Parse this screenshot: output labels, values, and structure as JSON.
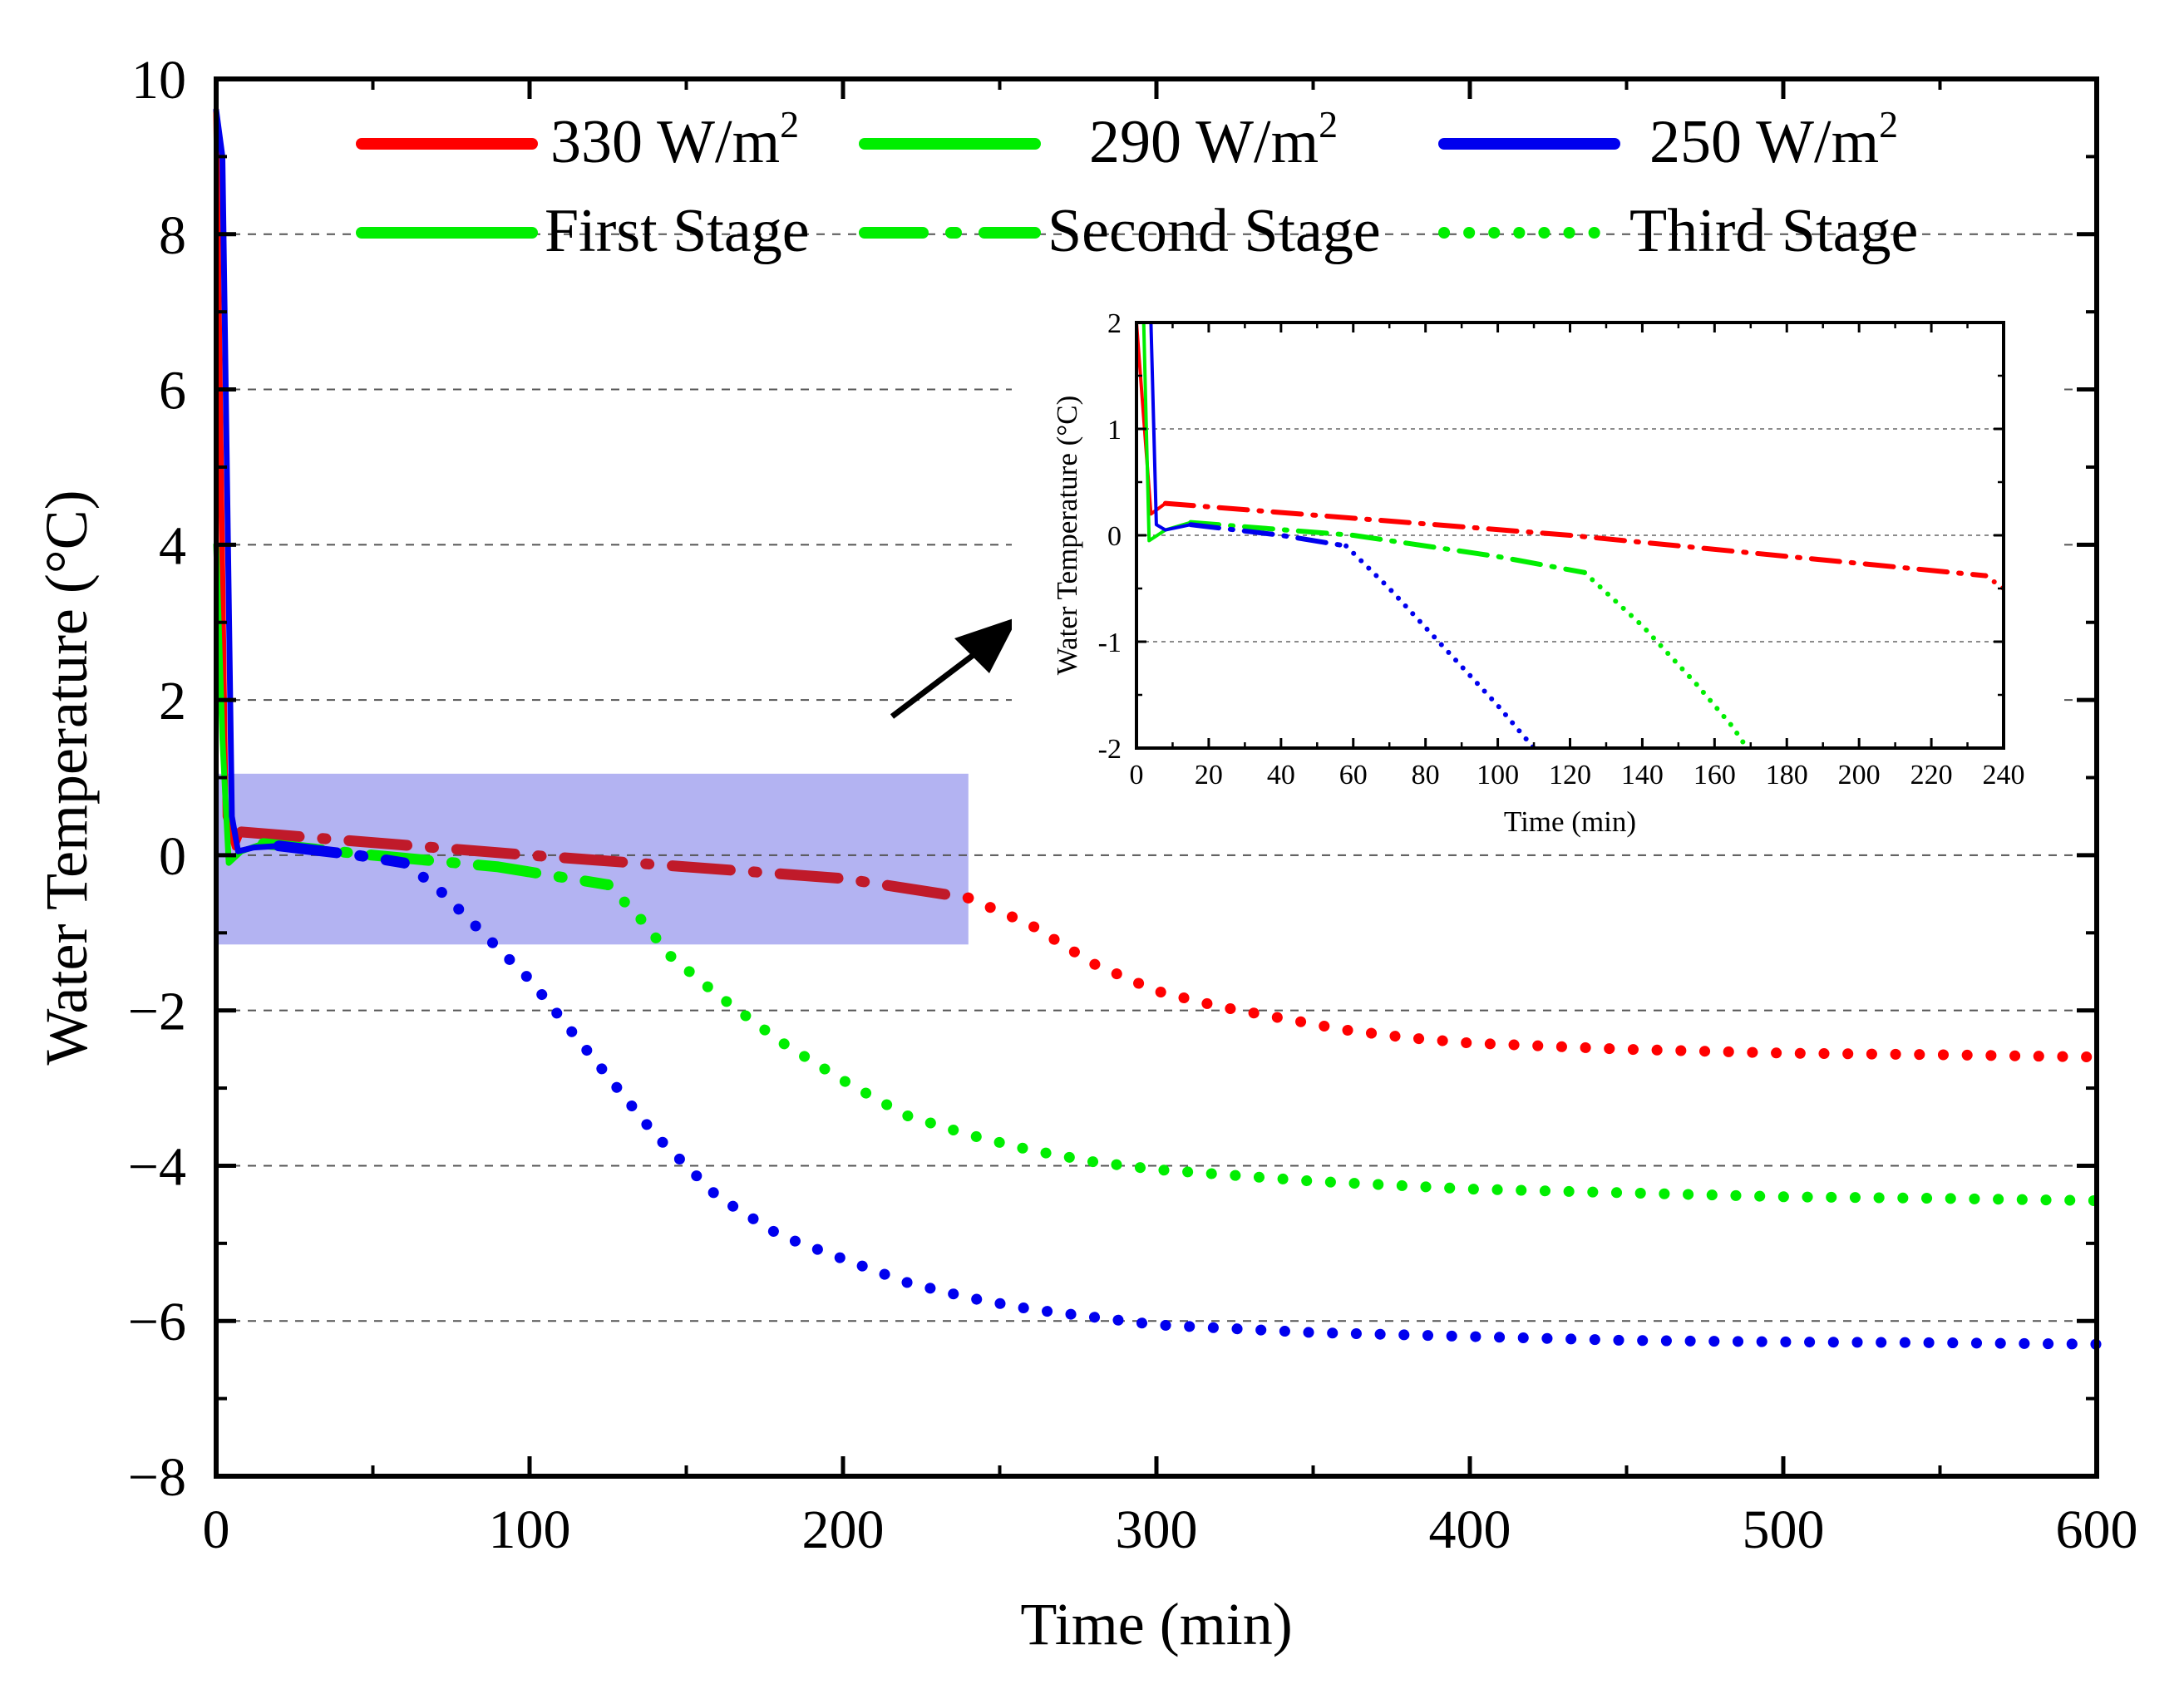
{
  "colors": {
    "q330": "#ff0000",
    "q290": "#00ee00",
    "q250": "#0000ee",
    "q330_in_zoom": "#c01a2a",
    "zoom_region": "#9999ee",
    "arrow": "#000000"
  },
  "chart_data": [
    {
      "id": "main",
      "type": "line",
      "xlabel": "Time (min)",
      "ylabel": "Water Temperature (°C)",
      "xlim": [
        0,
        600
      ],
      "ylim": [
        -8,
        10
      ],
      "xticks": [
        0,
        100,
        200,
        300,
        400,
        500,
        600
      ],
      "yticks": [
        10,
        8,
        6,
        4,
        2,
        0,
        -2,
        -4,
        -6,
        -8
      ],
      "ytick_labels": [
        "10",
        "8",
        "6",
        "4",
        "2",
        "0",
        "−2",
        "−4",
        "−6",
        "−8"
      ],
      "grid": "horizontal-dashed",
      "zoom_region": {
        "x": [
          0,
          240
        ],
        "y": [
          -1.15,
          1.05
        ]
      },
      "legend": {
        "placement": "top",
        "rows": [
          [
            {
              "label": "330 W/m",
              "sup": "2",
              "series": "q330",
              "style": "solid"
            },
            {
              "label": "290 W/m",
              "sup": "2",
              "series": "q290",
              "style": "solid"
            },
            {
              "label": "250 W/m",
              "sup": "2",
              "series": "q250",
              "style": "solid"
            }
          ],
          [
            {
              "label": "First Stage",
              "series": "q290",
              "style": "solid"
            },
            {
              "label": "Second Stage",
              "series": "q290",
              "style": "dashdot"
            },
            {
              "label": "Third Stage",
              "series": "q290",
              "style": "dotted"
            }
          ]
        ]
      },
      "series": [
        {
          "name": "330 W/m2",
          "color_key": "q330",
          "stages": [
            {
              "stage": "first",
              "points": [
                [
                  0,
                  9.6
                ],
                [
                  3,
                  0.5
                ],
                [
                  6,
                  0.1
                ],
                [
                  8,
                  0.3
                ]
              ]
            },
            {
              "stage": "second",
              "points": [
                [
                  8,
                  0.3
                ],
                [
                  100,
                  0.0
                ],
                [
                  200,
                  -0.3
                ],
                [
                  240,
                  -0.55
                ]
              ]
            },
            {
              "stage": "third",
              "points": [
                [
                  240,
                  -0.55
                ],
                [
                  260,
                  -0.9
                ],
                [
                  280,
                  -1.4
                ],
                [
                  300,
                  -1.75
                ],
                [
                  320,
                  -1.95
                ],
                [
                  340,
                  -2.1
                ],
                [
                  360,
                  -2.25
                ],
                [
                  380,
                  -2.35
                ],
                [
                  400,
                  -2.42
                ],
                [
                  450,
                  -2.5
                ],
                [
                  500,
                  -2.55
                ],
                [
                  550,
                  -2.57
                ],
                [
                  600,
                  -2.6
                ]
              ]
            }
          ]
        },
        {
          "name": "290 W/m2",
          "color_key": "q290",
          "stages": [
            {
              "stage": "first",
              "points": [
                [
                  0,
                  4.0
                ],
                [
                  2,
                  1.5
                ],
                [
                  4,
                  -0.1
                ],
                [
                  8,
                  0.05
                ],
                [
                  15,
                  0.15
                ]
              ]
            },
            {
              "stage": "second",
              "points": [
                [
                  15,
                  0.15
                ],
                [
                  50,
                  0.0
                ],
                [
                  90,
                  -0.15
                ],
                [
                  125,
                  -0.38
                ]
              ]
            },
            {
              "stage": "third",
              "points": [
                [
                  125,
                  -0.38
                ],
                [
                  135,
                  -0.8
                ],
                [
                  145,
                  -1.3
                ],
                [
                  160,
                  -1.8
                ],
                [
                  180,
                  -2.4
                ],
                [
                  200,
                  -2.9
                ],
                [
                  220,
                  -3.35
                ],
                [
                  240,
                  -3.6
                ],
                [
                  260,
                  -3.8
                ],
                [
                  280,
                  -3.95
                ],
                [
                  300,
                  -4.05
                ],
                [
                  350,
                  -4.2
                ],
                [
                  400,
                  -4.3
                ],
                [
                  450,
                  -4.35
                ],
                [
                  500,
                  -4.4
                ],
                [
                  550,
                  -4.42
                ],
                [
                  600,
                  -4.45
                ]
              ]
            }
          ]
        },
        {
          "name": "250 W/m2",
          "color_key": "q250",
          "stages": [
            {
              "stage": "first",
              "points": [
                [
                  0,
                  9.6
                ],
                [
                  2,
                  9.0
                ],
                [
                  5,
                  0.5
                ],
                [
                  7,
                  0.05
                ],
                [
                  12,
                  0.1
                ],
                [
                  20,
                  0.12
                ]
              ]
            },
            {
              "stage": "second",
              "points": [
                [
                  20,
                  0.12
                ],
                [
                  45,
                  0.0
                ],
                [
                  60,
                  -0.1
                ]
              ]
            },
            {
              "stage": "third",
              "points": [
                [
                  60,
                  -0.1
                ],
                [
                  70,
                  -0.4
                ],
                [
                  80,
                  -0.8
                ],
                [
                  100,
                  -1.6
                ],
                [
                  120,
                  -2.6
                ],
                [
                  140,
                  -3.6
                ],
                [
                  160,
                  -4.4
                ],
                [
                  180,
                  -4.9
                ],
                [
                  200,
                  -5.2
                ],
                [
                  220,
                  -5.5
                ],
                [
                  240,
                  -5.7
                ],
                [
                  260,
                  -5.85
                ],
                [
                  280,
                  -5.95
                ],
                [
                  300,
                  -6.05
                ],
                [
                  350,
                  -6.15
                ],
                [
                  400,
                  -6.2
                ],
                [
                  450,
                  -6.25
                ],
                [
                  500,
                  -6.27
                ],
                [
                  550,
                  -6.28
                ],
                [
                  600,
                  -6.3
                ]
              ]
            }
          ]
        }
      ]
    },
    {
      "id": "inset",
      "type": "line",
      "xlabel": "Time (min)",
      "ylabel": "Water Temperature (°C)",
      "xlim": [
        0,
        240
      ],
      "ylim": [
        -2,
        2
      ],
      "xticks": [
        0,
        20,
        40,
        60,
        80,
        100,
        120,
        140,
        160,
        180,
        200,
        220,
        240
      ],
      "yticks": [
        2,
        1,
        0,
        -1,
        -2
      ],
      "ytick_labels": [
        "2",
        "1",
        "0",
        "-1",
        "-2"
      ],
      "grid": "horizontal-dashed",
      "series": [
        {
          "name": "330 W/m2",
          "color_key": "q330",
          "stages": [
            {
              "stage": "first",
              "points": [
                [
                  0,
                  2.0
                ],
                [
                  4,
                  0.2
                ],
                [
                  6,
                  0.25
                ],
                [
                  8,
                  0.3
                ]
              ]
            },
            {
              "stage": "second",
              "points": [
                [
                  8,
                  0.3
                ],
                [
                  120,
                  0.0
                ],
                [
                  235,
                  -0.38
                ]
              ]
            },
            {
              "stage": "third",
              "points": [
                [
                  235,
                  -0.38
                ],
                [
                  240,
                  -0.5
                ]
              ]
            }
          ]
        },
        {
          "name": "290 W/m2",
          "color_key": "q290",
          "stages": [
            {
              "stage": "first",
              "points": [
                [
                  2,
                  2.0
                ],
                [
                  3.5,
                  -0.05
                ],
                [
                  8,
                  0.05
                ],
                [
                  15,
                  0.12
                ]
              ]
            },
            {
              "stage": "second",
              "points": [
                [
                  15,
                  0.12
                ],
                [
                  60,
                  0.0
                ],
                [
                  100,
                  -0.2
                ],
                [
                  124,
                  -0.35
                ]
              ]
            },
            {
              "stage": "third",
              "points": [
                [
                  124,
                  -0.35
                ],
                [
                  140,
                  -0.85
                ],
                [
                  155,
                  -1.4
                ],
                [
                  165,
                  -1.8
                ],
                [
                  169,
                  -2.0
                ]
              ]
            }
          ]
        },
        {
          "name": "250 W/m2",
          "color_key": "q250",
          "stages": [
            {
              "stage": "first",
              "points": [
                [
                  4,
                  2.0
                ],
                [
                  5.5,
                  0.1
                ],
                [
                  8,
                  0.05
                ],
                [
                  15,
                  0.1
                ]
              ]
            },
            {
              "stage": "second",
              "points": [
                [
                  15,
                  0.1
                ],
                [
                  40,
                  0.0
                ],
                [
                  58,
                  -0.1
                ]
              ]
            },
            {
              "stage": "third",
              "points": [
                [
                  58,
                  -0.1
                ],
                [
                  70,
                  -0.5
                ],
                [
                  85,
                  -1.05
                ],
                [
                  100,
                  -1.6
                ],
                [
                  110,
                  -2.0
                ]
              ]
            }
          ]
        }
      ]
    }
  ]
}
